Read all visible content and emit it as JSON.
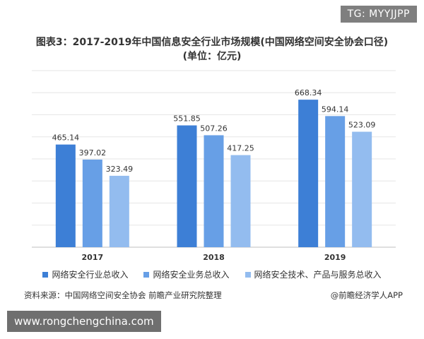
{
  "watermark_tag": "TG: MYYJJPP",
  "title_line1": "图表3：2017-2019年中国信息安全行业市场规模(中国网络空间安全协会口径)",
  "title_line2": "(单位：亿元)",
  "source_text": "资料来源：中国网络空间安全协会 前瞻产业研究院整理",
  "credit_text": "@前瞻经济学人APP",
  "site_url": "www.rongchengchina.com",
  "chart_data": {
    "type": "bar",
    "title": "图表3：2017-2019年中国信息安全行业市场规模(中国网络空间安全协会口径)",
    "subtitle": "(单位：亿元)",
    "categories": [
      "2017",
      "2018",
      "2019"
    ],
    "ylim": [
      0,
      800
    ],
    "grid": true,
    "legend_position": "bottom",
    "series": [
      {
        "name": "网络安全行业总收入",
        "values": [
          465.14,
          551.85,
          668.34
        ],
        "color": "#3d7fd6"
      },
      {
        "name": "网络安全业务总收入",
        "values": [
          397.02,
          507.26,
          594.14
        ],
        "color": "#679fe6"
      },
      {
        "name": "网络安全技术、产品与服务总收入",
        "values": [
          323.49,
          417.25,
          523.09
        ],
        "color": "#93bcef"
      }
    ]
  }
}
